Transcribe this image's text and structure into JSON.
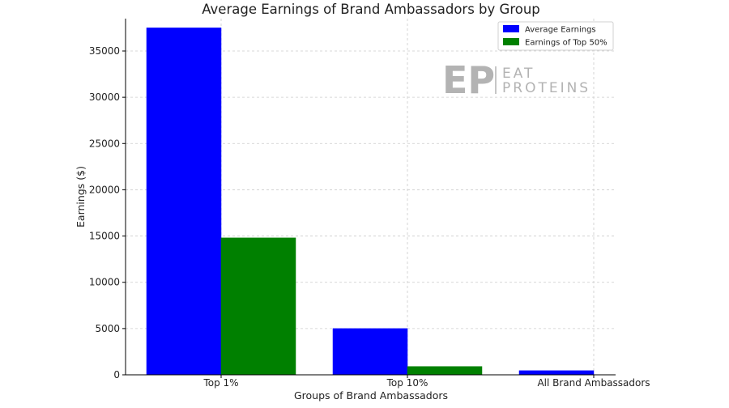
{
  "chart_data": {
    "type": "bar",
    "title": "Average Earnings of Brand Ambassadors by Group",
    "xlabel": "Groups of Brand Ambassadors",
    "ylabel": "Earnings ($)",
    "categories": [
      "Top 1%",
      "Top 10%",
      "All Brand Ambassadors"
    ],
    "series": [
      {
        "name": "Average Earnings",
        "values": [
          37500,
          5000,
          450
        ],
        "color": "#0000ff"
      },
      {
        "name": "Earnings of Top 50%",
        "values": [
          14800,
          900,
          0
        ],
        "color": "#008000"
      }
    ],
    "ylim": [
      0,
      38500
    ],
    "yticks": [
      0,
      5000,
      10000,
      15000,
      20000,
      25000,
      30000,
      35000
    ],
    "grid": true,
    "legend_position": "top-right"
  },
  "watermark": {
    "mark": "EP",
    "line1": "EAT",
    "line2": "PROTEINS",
    "color": "#b3b3b3"
  }
}
